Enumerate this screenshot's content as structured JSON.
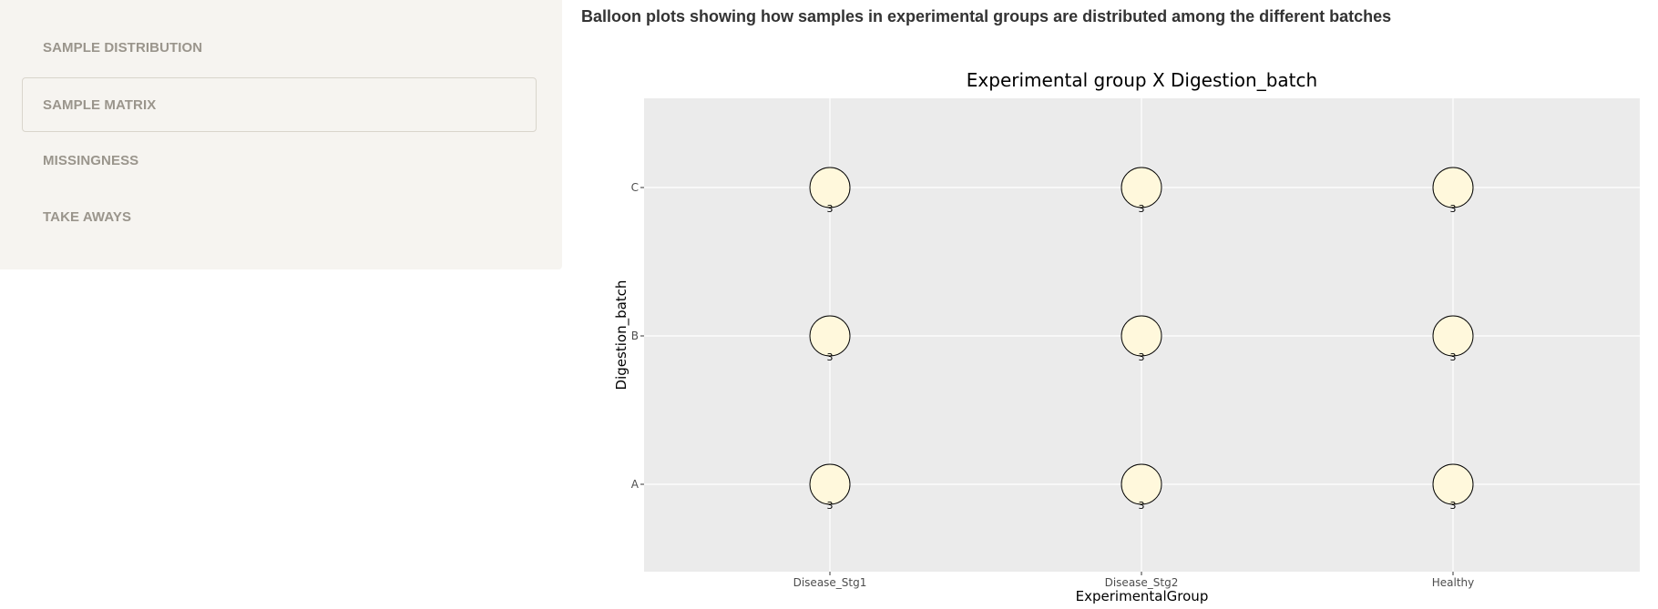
{
  "sidebar": {
    "items": [
      {
        "label": "SAMPLE DISTRIBUTION",
        "active": false
      },
      {
        "label": "SAMPLE MATRIX",
        "active": true
      },
      {
        "label": "MISSINGNESS",
        "active": false
      },
      {
        "label": "TAKE AWAYS",
        "active": false
      }
    ]
  },
  "main": {
    "heading": "Balloon plots showing how samples in experimental groups are distributed among the different batches"
  },
  "colors": {
    "panel_bg": "#ebebeb",
    "balloon_fill": "#fff8dc",
    "sidebar_text": "#9a958c"
  },
  "chart_data": {
    "type": "scatter",
    "subtype": "balloon",
    "title": "Experimental group X Digestion_batch",
    "xlabel": "ExperimentalGroup",
    "ylabel": "Digestion_batch",
    "x_categories": [
      "Disease_Stg1",
      "Disease_Stg2",
      "Healthy"
    ],
    "y_categories": [
      "A",
      "B",
      "C"
    ],
    "points": [
      {
        "x": "Disease_Stg1",
        "y": "C",
        "value": 3
      },
      {
        "x": "Disease_Stg2",
        "y": "C",
        "value": 3
      },
      {
        "x": "Healthy",
        "y": "C",
        "value": 3
      },
      {
        "x": "Disease_Stg1",
        "y": "B",
        "value": 3
      },
      {
        "x": "Disease_Stg2",
        "y": "B",
        "value": 3
      },
      {
        "x": "Healthy",
        "y": "B",
        "value": 3
      },
      {
        "x": "Disease_Stg1",
        "y": "A",
        "value": 3
      },
      {
        "x": "Disease_Stg2",
        "y": "A",
        "value": 3
      },
      {
        "x": "Healthy",
        "y": "A",
        "value": 3
      }
    ],
    "grid": true,
    "legend": "none"
  }
}
